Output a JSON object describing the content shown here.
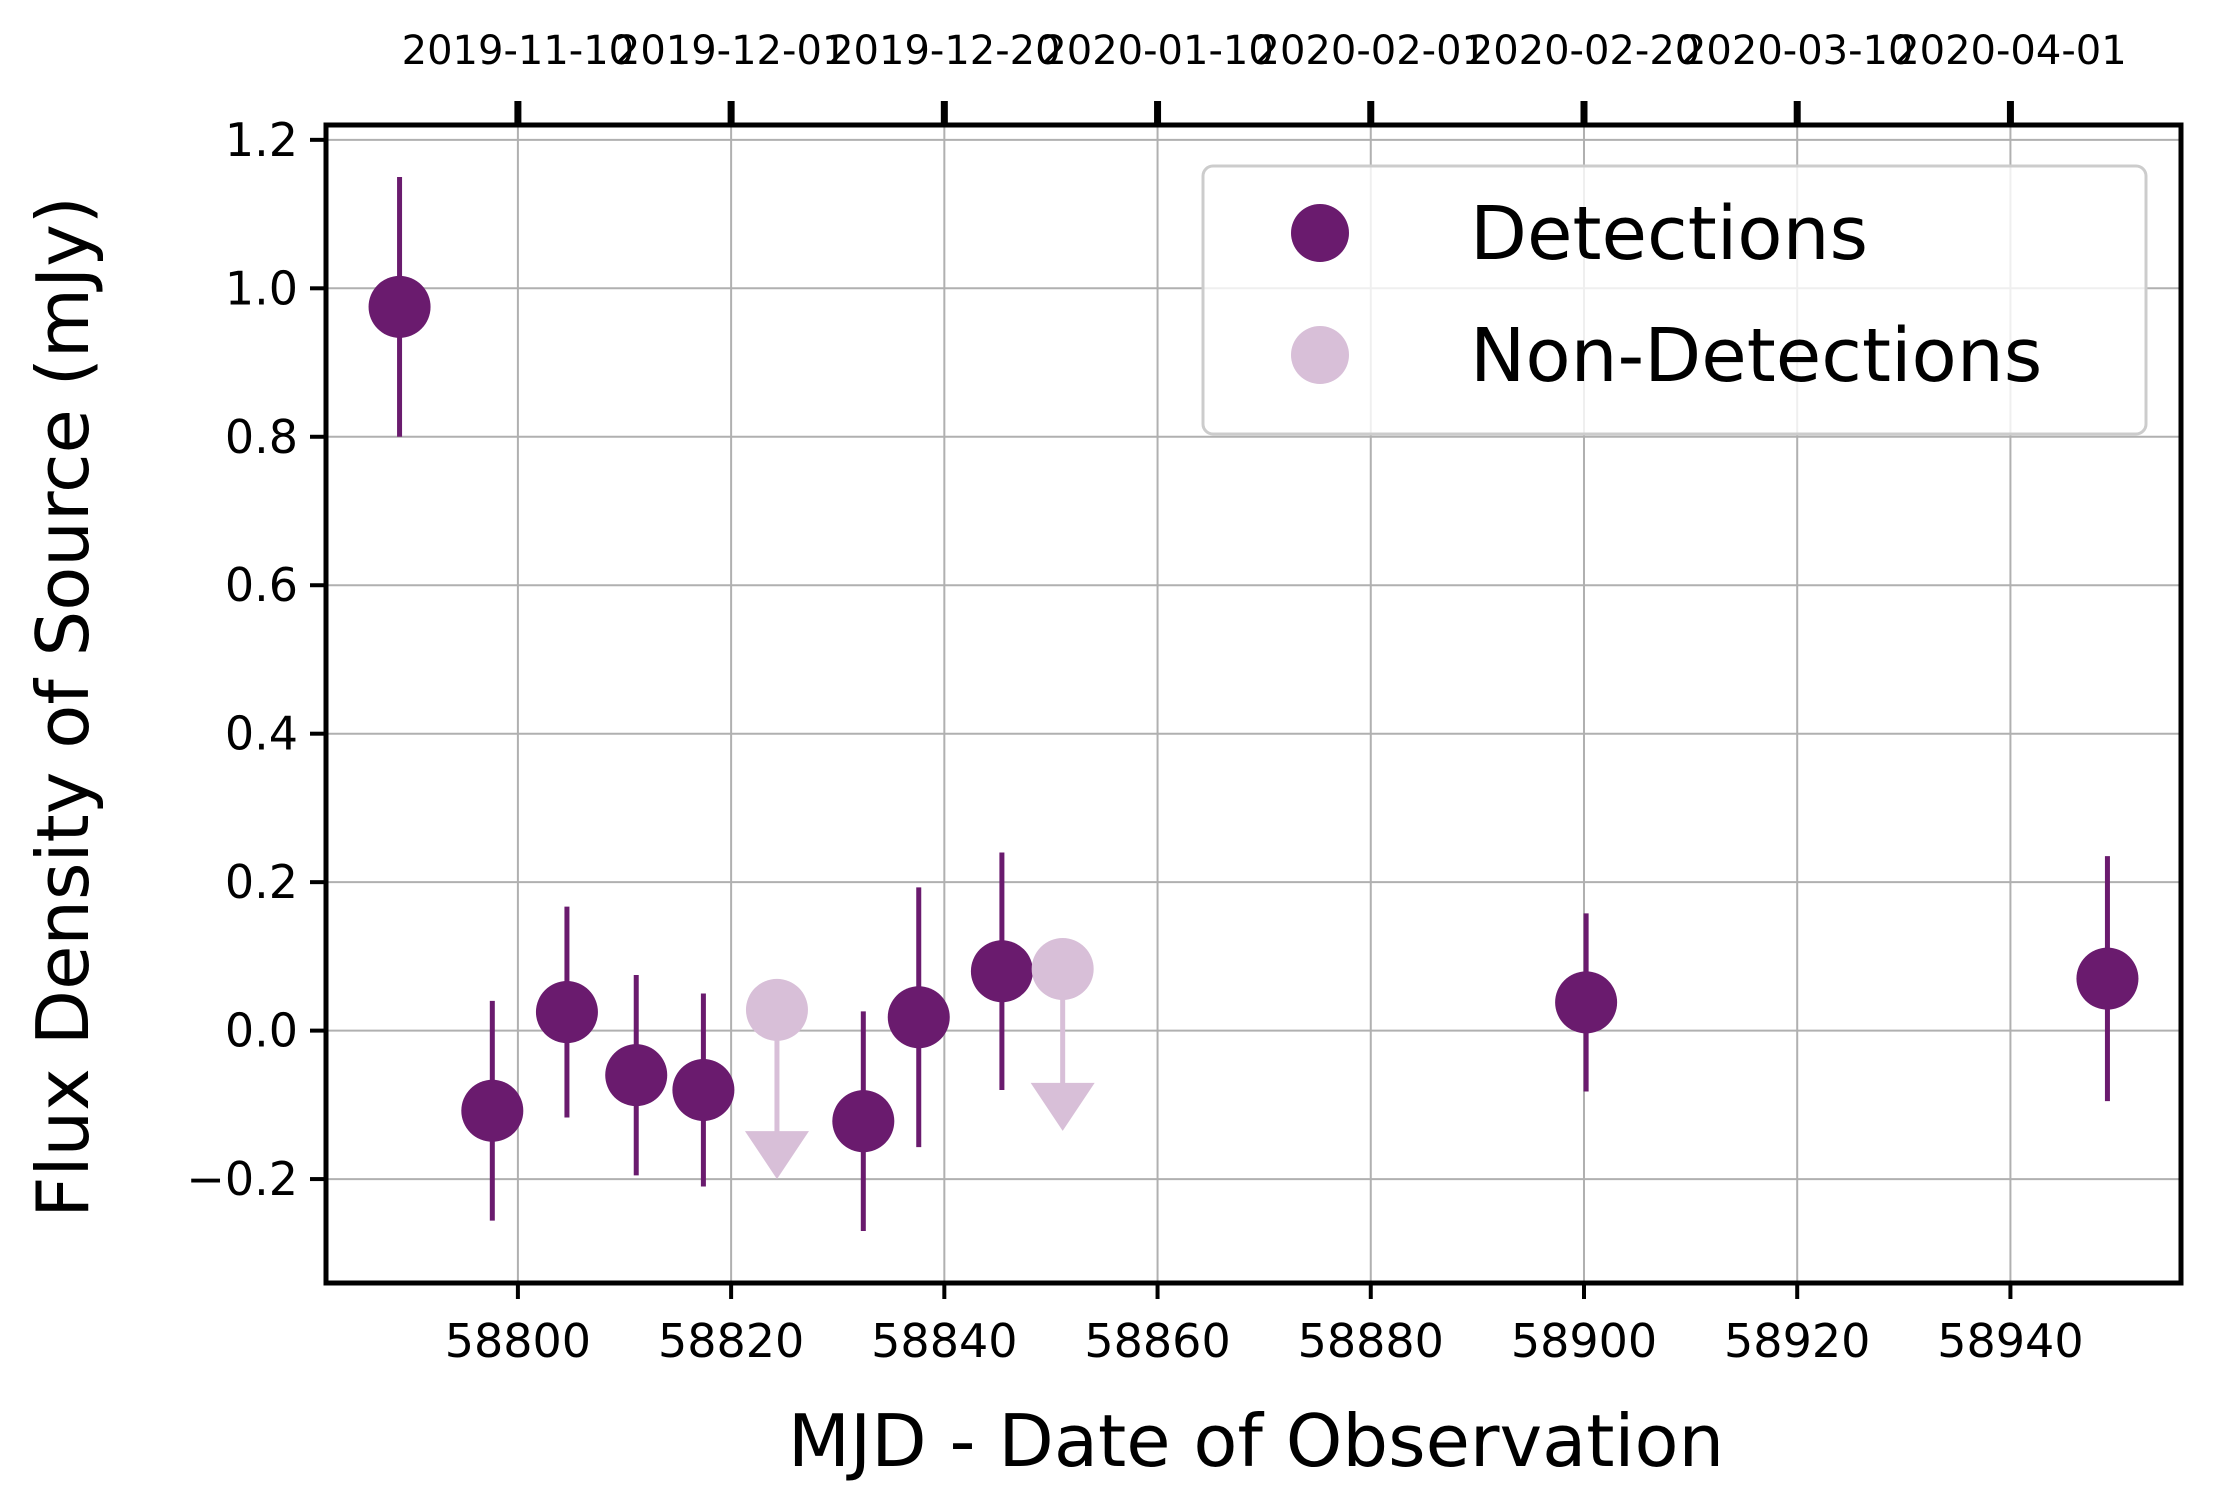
{
  "chart_data": {
    "type": "scatter",
    "xlabel": "MJD - Date of Observation",
    "ylabel": "Flux Density of Source (mJy)",
    "xlim": [
      58782,
      58956
    ],
    "ylim": [
      -0.34,
      1.22
    ],
    "xticks": [
      58800,
      58820,
      58840,
      58860,
      58880,
      58900,
      58920,
      58940
    ],
    "yticks": [
      -0.2,
      0.0,
      0.2,
      0.4,
      0.6,
      0.8,
      1.0,
      1.2
    ],
    "ytick_labels": [
      "−0.2",
      "0.0",
      "0.2",
      "0.4",
      "0.6",
      "0.8",
      "1.0",
      "1.2"
    ],
    "top_axis": {
      "ticks": [
        58800,
        58820,
        58840,
        58860,
        58880,
        58900,
        58920,
        58940
      ],
      "labels": [
        "2019-11-10",
        "2019-12-01",
        "2019-12-20",
        "2020-01-10",
        "2020-02-01",
        "2020-02-20",
        "2020-03-10",
        "2020-04-01"
      ]
    },
    "grid": true,
    "legend_position": "top-right",
    "series": [
      {
        "name": "Detections",
        "color": "#6a1b6e",
        "marker": "circle",
        "points": [
          {
            "x": 58788.9,
            "y": 0.975,
            "yerr": 0.175
          },
          {
            "x": 58797.6,
            "y": -0.108,
            "yerr": 0.148
          },
          {
            "x": 58804.6,
            "y": 0.025,
            "yerr": 0.142
          },
          {
            "x": 58811.1,
            "y": -0.06,
            "yerr": 0.135
          },
          {
            "x": 58817.4,
            "y": -0.08,
            "yerr": 0.13
          },
          {
            "x": 58832.4,
            "y": -0.122,
            "yerr": 0.148
          },
          {
            "x": 58837.6,
            "y": 0.018,
            "yerr": 0.175
          },
          {
            "x": 58845.4,
            "y": 0.08,
            "yerr": 0.16
          },
          {
            "x": 58900.2,
            "y": 0.038,
            "yerr": 0.12
          },
          {
            "x": 58949.1,
            "y": 0.07,
            "yerr": 0.165
          }
        ]
      },
      {
        "name": "Non-Detections",
        "color": "#d8bfd8",
        "marker": "circle-upper-limit",
        "points": [
          {
            "x": 58824.3,
            "y": 0.028,
            "arrow_to": -0.2
          },
          {
            "x": 58851.1,
            "y": 0.083,
            "arrow_to": -0.135
          }
        ]
      }
    ]
  }
}
